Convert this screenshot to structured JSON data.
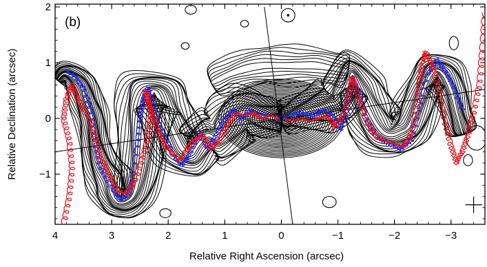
{
  "chart_data": {
    "type": "contour",
    "panel_label": "(b)",
    "xlabel": "Relative Right Ascension (arcsec)",
    "ylabel": "Relative Declination (arcsec)",
    "xlim": [
      4.0,
      -3.6
    ],
    "ylim": [
      -1.9,
      2.05
    ],
    "xticks": [
      4,
      3,
      2,
      1,
      0,
      -1,
      -2,
      -3
    ],
    "xtick_labels": [
      "4",
      "3",
      "2",
      "1",
      "0",
      "−1",
      "−2",
      "−3"
    ],
    "yticks": [
      2,
      1,
      0,
      -1
    ],
    "ytick_labels": [
      "2",
      "1",
      "0",
      "−1"
    ],
    "grid": false,
    "core": [
      0,
      0
    ],
    "contour_levels": 28,
    "reference_lines": [
      {
        "p1": [
          0.3,
          2.0
        ],
        "p2": [
          -0.2,
          -1.9
        ]
      },
      {
        "p1": [
          4.0,
          -0.6
        ],
        "p2": [
          -3.6,
          0.52
        ]
      }
    ],
    "colors": {
      "contours": "#000000",
      "blue_track": "#1f24e6",
      "red_track": "#e8121b"
    },
    "series": [
      {
        "color": "blue",
        "x": [
          3.8,
          3.65,
          3.5,
          3.35,
          3.3,
          3.2,
          3.0,
          2.85,
          2.75,
          2.65,
          2.55,
          2.5,
          2.45,
          2.4,
          2.35,
          2.3,
          2.2,
          2.05,
          1.9,
          1.75,
          1.6,
          1.45,
          1.3,
          1.15,
          1.0,
          0.85,
          0.7,
          0.55,
          0.4,
          0.25,
          0.1,
          0.0
        ],
        "y": [
          0.85,
          0.75,
          0.55,
          0.1,
          -0.45,
          -0.9,
          -1.25,
          -1.45,
          -1.4,
          -1.2,
          -0.5,
          0.0,
          0.3,
          0.5,
          0.55,
          0.35,
          -0.05,
          -0.35,
          -0.7,
          -0.85,
          -0.6,
          -0.25,
          -0.55,
          -0.3,
          0.0,
          0.15,
          0.0,
          0.15,
          0.1,
          0.05,
          0.02,
          0.0
        ]
      },
      {
        "color": "blue",
        "x": [
          0.0,
          -0.15,
          -0.35,
          -0.55,
          -0.75,
          -0.9,
          -1.05,
          -1.15,
          -1.25,
          -1.35,
          -1.5,
          -1.7,
          -1.9,
          -2.1,
          -2.3,
          -2.45,
          -2.6,
          -2.75,
          -2.9,
          -3.05,
          -3.2
        ],
        "y": [
          0.0,
          0.05,
          0.1,
          0.05,
          0.15,
          0.05,
          -0.2,
          0.1,
          0.75,
          0.55,
          0.0,
          -0.35,
          -0.45,
          -0.55,
          -0.4,
          0.2,
          0.8,
          1.05,
          0.85,
          0.55,
          0.15
        ]
      },
      {
        "color": "red",
        "x": [
          3.85,
          3.75,
          3.7,
          3.75,
          3.85,
          3.8,
          3.7,
          3.6,
          3.5,
          3.4,
          3.3,
          3.2,
          3.05,
          2.9,
          2.75,
          2.6,
          2.45,
          2.35,
          2.3,
          2.35,
          2.4,
          2.35,
          2.25,
          2.15,
          2.05,
          1.9,
          1.8,
          1.7,
          1.55,
          1.4,
          1.25,
          1.1,
          0.95,
          0.8,
          0.65,
          0.5,
          0.35,
          0.2,
          0.05
        ],
        "y": [
          -1.9,
          -1.4,
          -0.9,
          -0.4,
          0.0,
          0.35,
          0.6,
          0.35,
          0.15,
          0.0,
          -0.35,
          -0.7,
          -1.0,
          -1.3,
          -1.35,
          -1.15,
          -0.7,
          -0.3,
          0.1,
          0.35,
          0.5,
          0.25,
          0.0,
          -0.3,
          -0.5,
          -0.65,
          -0.75,
          -0.6,
          -0.4,
          -0.3,
          -0.55,
          -0.4,
          -0.1,
          0.1,
          0.05,
          0.1,
          0.0,
          0.05,
          0.0
        ]
      },
      {
        "color": "red",
        "x": [
          -0.05,
          -0.2,
          -0.35,
          -0.5,
          -0.65,
          -0.8,
          -0.95,
          -1.1,
          -1.2,
          -1.25,
          -1.3,
          -1.4,
          -1.55,
          -1.7,
          -1.85,
          -2.0,
          -2.15,
          -2.3,
          -2.4,
          -2.45,
          -2.5,
          -2.55,
          -2.6,
          -2.7,
          -2.8,
          -2.9,
          -3.0,
          -3.1,
          -3.2,
          -3.3,
          -3.4,
          -3.5,
          -3.55,
          -3.6
        ],
        "y": [
          0.0,
          -0.05,
          0.0,
          -0.05,
          0.0,
          0.05,
          -0.15,
          0.05,
          0.45,
          0.75,
          0.6,
          0.25,
          -0.15,
          -0.35,
          -0.4,
          -0.45,
          -0.5,
          -0.3,
          0.2,
          0.7,
          1.0,
          1.2,
          1.1,
          0.85,
          0.4,
          -0.1,
          -0.5,
          -0.8,
          -0.6,
          -0.3,
          0.1,
          0.6,
          1.2,
          1.9
        ]
      }
    ],
    "contour_groups": [
      {
        "x": [
          3.95,
          3.85,
          3.7,
          3.55,
          3.45,
          3.35,
          3.3,
          3.2,
          3.05,
          3.0,
          2.9,
          2.75,
          2.6,
          2.5,
          2.45,
          2.4,
          2.3,
          2.2,
          2.05,
          1.9,
          1.75,
          1.6,
          1.45,
          1.3,
          1.15,
          1.0,
          0.85,
          0.7,
          0.55,
          0.4,
          0.25,
          0.1,
          0.0
        ],
        "y": [
          0.7,
          0.8,
          0.75,
          0.6,
          0.3,
          0.0,
          -0.4,
          -0.8,
          -1.1,
          -1.35,
          -1.5,
          -1.5,
          -1.35,
          -0.9,
          -0.3,
          0.2,
          0.45,
          0.45,
          0.1,
          -0.25,
          -0.55,
          -0.65,
          -0.45,
          -0.3,
          -0.35,
          -0.2,
          0.0,
          0.1,
          0.1,
          0.05,
          0.02,
          0.0,
          0.0
        ],
        "w": [
          0.15,
          0.2,
          0.25,
          0.3,
          0.3,
          0.3,
          0.3,
          0.35,
          0.4,
          0.35,
          0.3,
          0.3,
          0.35,
          0.45,
          0.5,
          0.55,
          0.55,
          0.5,
          0.5,
          0.5,
          0.5,
          0.45,
          0.45,
          0.45,
          0.5,
          0.55,
          0.55,
          0.5,
          0.45,
          0.4,
          0.35,
          0.3,
          0.25
        ],
        "levels": 14
      },
      {
        "x": [
          0.0,
          -0.15,
          -0.3,
          -0.5,
          -0.7,
          -0.85,
          -1.0,
          -1.15,
          -1.25,
          -1.35,
          -1.5,
          -1.65,
          -1.8,
          -1.95,
          -2.1,
          -2.25,
          -2.4,
          -2.55,
          -2.7,
          -2.85,
          -3.0,
          -3.1,
          -3.2
        ],
        "y": [
          0.0,
          0.05,
          0.1,
          0.15,
          0.2,
          0.25,
          0.3,
          0.55,
          0.8,
          0.6,
          0.25,
          -0.05,
          -0.25,
          -0.3,
          -0.25,
          -0.15,
          0.2,
          0.6,
          0.85,
          0.8,
          0.5,
          0.1,
          -0.25
        ],
        "w": [
          0.25,
          0.3,
          0.35,
          0.4,
          0.45,
          0.45,
          0.45,
          0.45,
          0.4,
          0.45,
          0.5,
          0.5,
          0.45,
          0.4,
          0.4,
          0.4,
          0.4,
          0.35,
          0.35,
          0.35,
          0.35,
          0.3,
          0.25
        ],
        "levels": 14
      },
      {
        "x": [
          1.2,
          0.9,
          0.6,
          0.3,
          0.0,
          -0.3,
          -0.6,
          -0.9,
          -1.15
        ],
        "y": [
          0.65,
          0.8,
          0.9,
          0.95,
          0.95,
          0.95,
          0.95,
          0.9,
          0.85
        ],
        "w": [
          0.25,
          0.3,
          0.35,
          0.35,
          0.35,
          0.35,
          0.35,
          0.3,
          0.25
        ],
        "levels": 6
      }
    ],
    "isolated_contours": [
      {
        "x": 1.6,
        "y": 1.95,
        "rx": 0.1,
        "ry": 0.08
      },
      {
        "x": 0.65,
        "y": 1.7,
        "rx": 0.07,
        "ry": 0.06
      },
      {
        "x": -0.12,
        "y": 1.85,
        "rx": 0.12,
        "ry": 0.12
      },
      {
        "x": 1.7,
        "y": 1.3,
        "rx": 0.07,
        "ry": 0.06
      },
      {
        "x": -0.85,
        "y": -1.5,
        "rx": 0.12,
        "ry": 0.1
      },
      {
        "x": 2.05,
        "y": -1.7,
        "rx": 0.1,
        "ry": 0.08
      },
      {
        "x": -3.3,
        "y": -0.75,
        "rx": 0.08,
        "ry": 0.1
      },
      {
        "x": -3.45,
        "y": -0.35,
        "rx": 0.18,
        "ry": 0.22
      },
      {
        "x": -3.05,
        "y": 1.35,
        "rx": 0.08,
        "ry": 0.12
      }
    ],
    "beam_marker": {
      "x": -3.4,
      "y": -1.55
    }
  }
}
